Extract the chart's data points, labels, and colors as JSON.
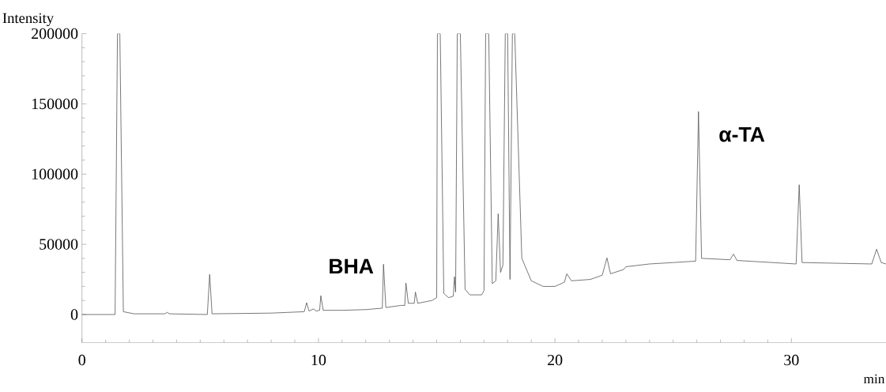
{
  "chart_data": {
    "type": "line",
    "xlabel": "min",
    "ylabel": "Intensity",
    "color": "#555555",
    "xlim": [
      0,
      34
    ],
    "ylim": [
      -20000,
      200000
    ],
    "xticks": [
      0,
      10,
      20,
      30
    ],
    "yticks": [
      0,
      50000,
      100000,
      150000,
      200000
    ],
    "grid": false,
    "marker": "none",
    "line_style": "solid",
    "x": [
      0,
      1.4,
      1.5,
      1.6,
      1.75,
      2.2,
      3.5,
      3.6,
      3.7,
      5.3,
      5.4,
      5.5,
      8,
      9.4,
      9.5,
      9.6,
      9.8,
      9.9,
      10.05,
      10.1,
      10.2,
      11,
      12,
      12.7,
      12.75,
      12.85,
      13.5,
      13.65,
      13.7,
      13.8,
      14.05,
      14.1,
      14.2,
      14.8,
      15.0,
      15.03,
      15.15,
      15.3,
      15.5,
      15.7,
      15.75,
      15.8,
      15.87,
      16.0,
      16.2,
      16.4,
      16.9,
      17.0,
      17.07,
      17.2,
      17.35,
      17.5,
      17.6,
      17.7,
      17.8,
      17.9,
      18.0,
      18.1,
      18.2,
      18.3,
      18.6,
      19,
      19.5,
      20,
      20.4,
      20.5,
      20.7,
      21.5,
      22.0,
      22.2,
      22.35,
      22.9,
      23.0,
      24,
      25,
      25.95,
      26.07,
      26.2,
      27.4,
      27.55,
      27.7,
      30.2,
      30.33,
      30.45,
      33.4,
      33.6,
      33.8,
      34
    ],
    "values": [
      0,
      0,
      200000,
      200000,
      2000,
      500,
      500,
      1500,
      500,
      0,
      28600,
      500,
      1000,
      2000,
      8400,
      2500,
      4000,
      2500,
      3000,
      13400,
      3000,
      3000,
      3500,
      4500,
      35800,
      5000,
      6500,
      6500,
      22400,
      8000,
      8000,
      16000,
      8000,
      10000,
      12000,
      200000,
      200000,
      15000,
      12000,
      13000,
      26900,
      16000,
      200000,
      200000,
      18000,
      14000,
      14000,
      17000,
      200000,
      200000,
      22000,
      24000,
      71700,
      30000,
      35000,
      200000,
      200000,
      25000,
      200000,
      200000,
      40000,
      24000,
      20000,
      20000,
      23000,
      29000,
      24000,
      25000,
      28000,
      40300,
      29000,
      32000,
      34000,
      36000,
      37000,
      38000,
      144500,
      40000,
      39000,
      43000,
      38500,
      36000,
      92400,
      37000,
      36000,
      46500,
      37000,
      36000
    ],
    "annotations": [
      {
        "text": "BHA",
        "x": 12.75,
        "y": 35800
      },
      {
        "text": "α-TA",
        "x": 26.07,
        "y": 144500
      }
    ]
  }
}
